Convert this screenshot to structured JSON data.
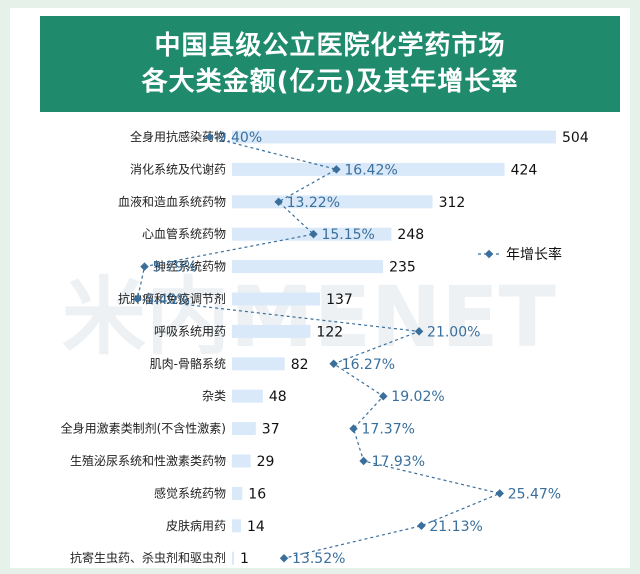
{
  "header": {
    "title_line1": "中国县级公立医院化学药市场",
    "title_line2": "各大类金额(亿元)及其年增长率"
  },
  "legend": {
    "label": "年增长率"
  },
  "watermark": {
    "text": "米内MENET"
  },
  "colors": {
    "header_bg": "#1f8a6c",
    "bar": "#d9e9f9",
    "line": "#3a6f9c",
    "page_bg": "#e6f1ea"
  },
  "chart_data": {
    "type": "bar",
    "categories": [
      "全身用抗感染药物",
      "消化系统及代谢药",
      "血液和造血系统药物",
      "心血管系统药物",
      "神经系统药物",
      "抗肿瘤和免疫调节剂",
      "呼吸系统用药",
      "肌肉-骨骼系统",
      "杂类",
      "全身用激素类制剂(不含性激素)",
      "生殖泌尿系统和性激素类药物",
      "感觉系统药物",
      "皮肤病用药",
      "抗寄生虫药、杀虫剂和驱虫剂"
    ],
    "values": [
      504,
      424,
      312,
      248,
      235,
      137,
      122,
      82,
      48,
      37,
      29,
      16,
      14,
      1
    ],
    "growth_labels": [
      "9.40%",
      "16.42%",
      "13.22%",
      "15.15%",
      "5.79%",
      "5.40%",
      "21.00%",
      "16.27%",
      "19.02%",
      "17.37%",
      "17.93%",
      "25.47%",
      "21.13%",
      "13.52%"
    ],
    "growth": [
      9.4,
      16.42,
      13.22,
      15.15,
      5.79,
      5.4,
      21.0,
      16.27,
      19.02,
      17.37,
      17.93,
      25.47,
      21.13,
      13.52
    ],
    "series": [
      {
        "name": "",
        "type": "bar"
      },
      {
        "name": "年增长率",
        "type": "line"
      }
    ],
    "orientation": "horizontal",
    "xlim": [
      0,
      504
    ],
    "growth_lim": [
      0,
      30
    ],
    "legend_position": "right"
  }
}
